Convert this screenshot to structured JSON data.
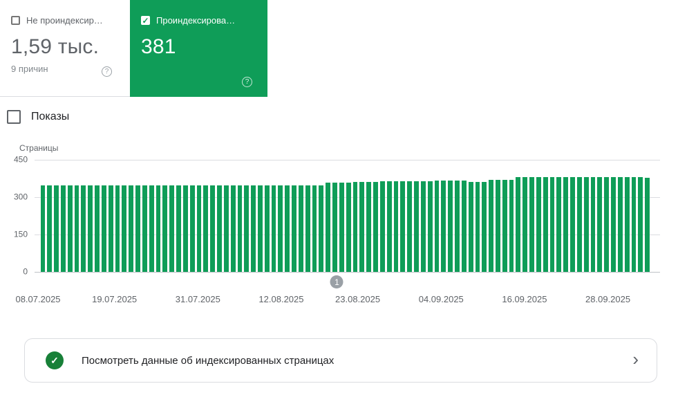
{
  "cards": {
    "not_indexed": {
      "label": "Не проиндексир…",
      "value": "1,59 тыс.",
      "sub": "9 причин"
    },
    "indexed": {
      "label": "Проиндексирова…",
      "value": "381"
    }
  },
  "impressions": {
    "label": "Показы"
  },
  "chart_data": {
    "type": "bar",
    "title": "",
    "xlabel": "",
    "ylabel": "Страницы",
    "ylim": [
      0,
      450
    ],
    "yticks": [
      450,
      300,
      150,
      0
    ],
    "grid": true,
    "legend": false,
    "bar_color": "#0f9d58",
    "x_tick_labels": [
      "08.07.2025",
      "19.07.2025",
      "31.07.2025",
      "12.08.2025",
      "23.08.2025",
      "04.09.2025",
      "16.09.2025",
      "28.09.2025"
    ],
    "x_tick_indices": [
      0,
      11,
      23,
      35,
      46,
      58,
      70,
      82
    ],
    "marker": {
      "label": "1",
      "index": 43
    },
    "values": [
      347,
      347,
      347,
      347,
      347,
      347,
      347,
      347,
      347,
      347,
      347,
      347,
      347,
      347,
      347,
      347,
      347,
      347,
      347,
      347,
      347,
      347,
      347,
      347,
      347,
      347,
      347,
      347,
      347,
      347,
      347,
      347,
      347,
      347,
      347,
      347,
      347,
      347,
      347,
      347,
      347,
      347,
      358,
      358,
      358,
      358,
      362,
      362,
      362,
      362,
      365,
      365,
      365,
      365,
      365,
      365,
      365,
      365,
      366,
      366,
      366,
      366,
      366,
      362,
      362,
      362,
      370,
      370,
      370,
      370,
      380,
      380,
      380,
      380,
      380,
      380,
      380,
      380,
      380,
      380,
      380,
      380,
      380,
      380,
      380,
      380,
      380,
      380,
      381,
      378
    ]
  },
  "banner": {
    "text": "Посмотреть данные об индексированных страницах"
  },
  "icons": {
    "check": "✓",
    "help": "?",
    "chevron": "›"
  },
  "colors": {
    "selected_card_green": "#0f9d58",
    "bar_green": "#0f9d58",
    "banner_icon_green": "#188038",
    "marker_gray": "#9aa0a6",
    "gridline_gray": "#dadce0"
  }
}
